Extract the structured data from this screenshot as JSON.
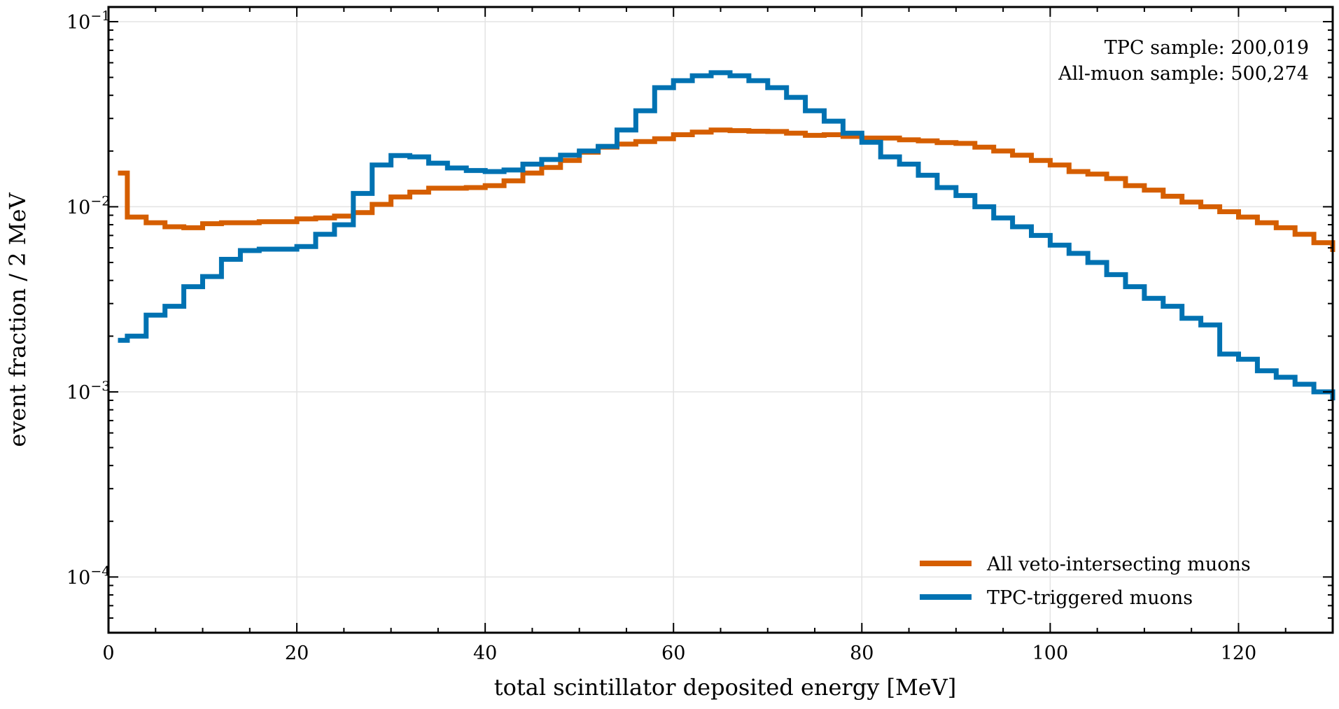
{
  "chart_data": {
    "type": "step",
    "xlabel": "total scintillator deposited energy [MeV]",
    "ylabel": "event fraction / 2 MeV",
    "xlim": [
      0,
      130
    ],
    "ylim": [
      5e-05,
      0.12
    ],
    "yscale": "log",
    "grid": true,
    "legend_position": "bottom-right",
    "x_ticks": [
      {
        "value": 0,
        "label": "0"
      },
      {
        "value": 20,
        "label": "20"
      },
      {
        "value": 40,
        "label": "40"
      },
      {
        "value": 60,
        "label": "60"
      },
      {
        "value": 80,
        "label": "80"
      },
      {
        "value": 100,
        "label": "100"
      },
      {
        "value": 120,
        "label": "120"
      }
    ],
    "y_ticks": [
      {
        "value": 0.1,
        "base": "10",
        "exp": "−1"
      },
      {
        "value": 0.01,
        "base": "10",
        "exp": "−2"
      },
      {
        "value": 0.001,
        "base": "10",
        "exp": "−3"
      },
      {
        "value": 0.0001,
        "base": "10",
        "exp": "−4"
      }
    ],
    "bin_edges": [
      1,
      2,
      4,
      6,
      8,
      10,
      12,
      14,
      16,
      18,
      20,
      22,
      24,
      26,
      28,
      30,
      32,
      34,
      36,
      38,
      40,
      42,
      44,
      46,
      48,
      50,
      52,
      54,
      56,
      58,
      60,
      62,
      64,
      66,
      68,
      70,
      72,
      74,
      76,
      78,
      80,
      82,
      84,
      86,
      88,
      90,
      92,
      94,
      96,
      98,
      100,
      102,
      104,
      106,
      108,
      110,
      112,
      114,
      116,
      118,
      120,
      122,
      124,
      126,
      128,
      130
    ],
    "series": [
      {
        "name": "All veto-intersecting muons",
        "color": "#d55e00",
        "values": [
          0.0152,
          0.0088,
          0.0082,
          0.0078,
          0.0077,
          0.0081,
          0.0082,
          0.0082,
          0.0083,
          0.0083,
          0.0086,
          0.0087,
          0.0089,
          0.0093,
          0.0103,
          0.0113,
          0.012,
          0.0126,
          0.0126,
          0.0127,
          0.013,
          0.0138,
          0.0152,
          0.0163,
          0.0178,
          0.0197,
          0.021,
          0.0218,
          0.0225,
          0.0233,
          0.0245,
          0.0253,
          0.026,
          0.0258,
          0.0256,
          0.0255,
          0.025,
          0.0243,
          0.0245,
          0.024,
          0.0235,
          0.0235,
          0.023,
          0.0227,
          0.0222,
          0.022,
          0.021,
          0.02,
          0.019,
          0.0178,
          0.0168,
          0.0155,
          0.015,
          0.0142,
          0.013,
          0.0123,
          0.0114,
          0.0106,
          0.01,
          0.0094,
          0.0088,
          0.0082,
          0.0077,
          0.0071,
          0.0064,
          0.0057
        ]
      },
      {
        "name": "TPC-triggered muons",
        "color": "#0072b2",
        "values": [
          0.0019,
          0.002,
          0.0026,
          0.0029,
          0.0037,
          0.0042,
          0.0052,
          0.0058,
          0.0059,
          0.0059,
          0.0061,
          0.0071,
          0.008,
          0.0118,
          0.0168,
          0.0189,
          0.0186,
          0.0172,
          0.0162,
          0.0157,
          0.0155,
          0.0158,
          0.017,
          0.018,
          0.019,
          0.02,
          0.0212,
          0.026,
          0.033,
          0.044,
          0.048,
          0.051,
          0.053,
          0.051,
          0.048,
          0.044,
          0.039,
          0.033,
          0.029,
          0.025,
          0.0223,
          0.0186,
          0.017,
          0.0148,
          0.0127,
          0.0115,
          0.01,
          0.0087,
          0.0078,
          0.007,
          0.0062,
          0.0056,
          0.005,
          0.0043,
          0.0037,
          0.0032,
          0.0029,
          0.0025,
          0.0023,
          0.0016,
          0.0015,
          0.0013,
          0.0012,
          0.0011,
          0.001,
          0.0009
        ]
      }
    ],
    "annotations": [
      "TPC sample: 200,019",
      "All-muon sample: 500,274"
    ]
  }
}
